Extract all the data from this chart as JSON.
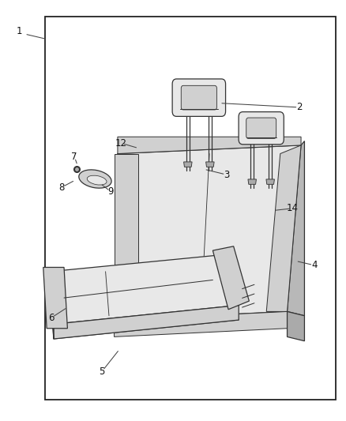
{
  "background_color": "#ffffff",
  "border_color": "#222222",
  "line_color": "#333333",
  "fill_light": "#e8e8e8",
  "fill_mid": "#d0d0d0",
  "fill_dark": "#b8b8b8",
  "lw": 0.9,
  "border": [
    0.13,
    0.05,
    0.84,
    0.91
  ],
  "labels": {
    "1": [
      0.055,
      0.915,
      0.09,
      0.905
    ],
    "2": [
      0.86,
      0.735,
      0.77,
      0.73
    ],
    "3": [
      0.65,
      0.585,
      0.6,
      0.58
    ],
    "4": [
      0.9,
      0.37,
      0.84,
      0.38
    ],
    "5": [
      0.295,
      0.115,
      0.34,
      0.145
    ],
    "6": [
      0.145,
      0.245,
      0.195,
      0.26
    ],
    "7": [
      0.215,
      0.63,
      0.225,
      0.615
    ],
    "8": [
      0.175,
      0.555,
      0.21,
      0.572
    ],
    "9": [
      0.315,
      0.545,
      0.285,
      0.558
    ],
    "12": [
      0.36,
      0.655,
      0.415,
      0.635
    ],
    "14": [
      0.84,
      0.505,
      0.79,
      0.5
    ]
  }
}
